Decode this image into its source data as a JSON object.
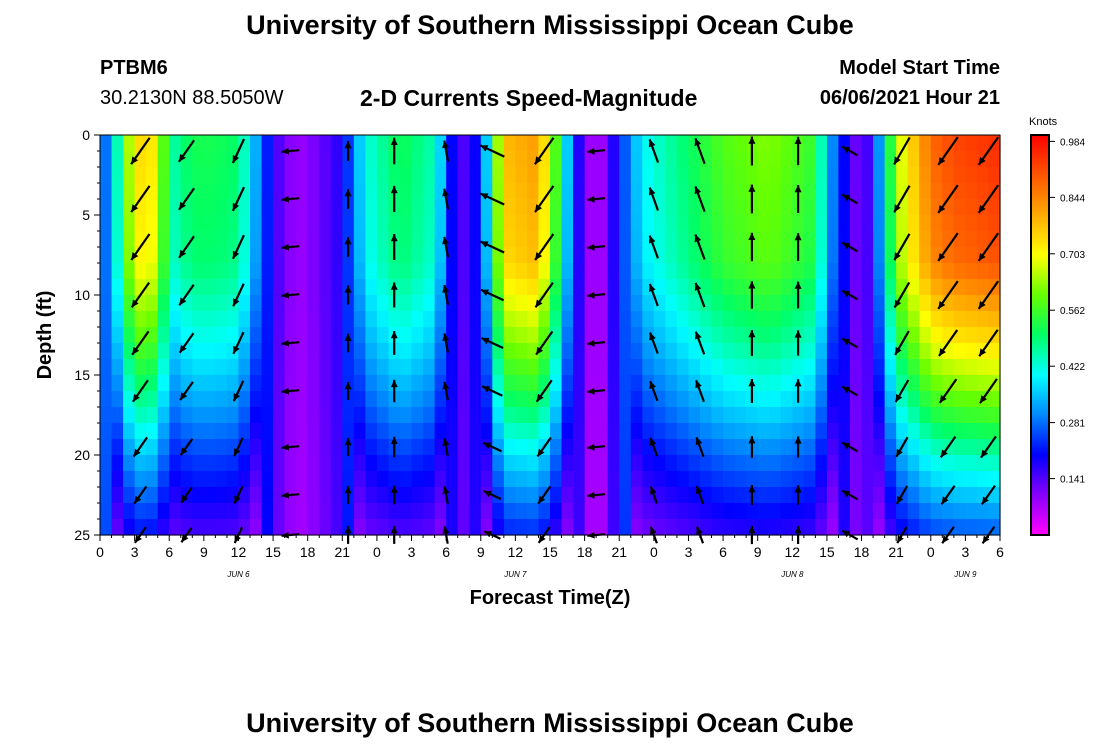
{
  "header": {
    "title": "University of Southern Mississippi Ocean Cube",
    "station_id": "PTBM6",
    "station_coords": "30.2130N  88.5050W",
    "model_start_label": "Model Start Time",
    "model_start_time": "06/06/2021 Hour 21"
  },
  "footer": {
    "title": "University of Southern Mississippi Ocean Cube"
  },
  "chart_data": {
    "type": "heatmap",
    "title": "2-D Currents Speed-Magnitude",
    "xlabel": "Forecast Time(Z)",
    "ylabel": "Depth (ft)",
    "x_range_hours": [
      0,
      78
    ],
    "y_range_ft": [
      0,
      25
    ],
    "y_inverted": true,
    "y_ticks": [
      0,
      5,
      10,
      15,
      20,
      25
    ],
    "x_tick_labels": [
      "0",
      "3",
      "6",
      "9",
      "12",
      "15",
      "18",
      "21",
      "0",
      "3",
      "6",
      "9",
      "12",
      "15",
      "18",
      "21",
      "0",
      "3",
      "6",
      "9",
      "12",
      "15",
      "18",
      "21",
      "0",
      "3",
      "6"
    ],
    "date_labels": [
      {
        "text": "JUN 6",
        "hour": 12
      },
      {
        "text": "JUN 7",
        "hour": 36
      },
      {
        "text": "JUN 8",
        "hour": 60
      },
      {
        "text": "JUN 9",
        "hour": 75
      }
    ],
    "colorbar": {
      "unit": "Knots",
      "ticks": [
        0.141,
        0.281,
        0.422,
        0.562,
        0.703,
        0.844,
        0.984
      ],
      "min": 0.0,
      "max": 1.0,
      "colors": [
        "#ff00ff",
        "#8800ff",
        "#0000ff",
        "#0088ff",
        "#00ffff",
        "#00ff66",
        "#66ff00",
        "#ffff00",
        "#ffaa00",
        "#ff5500",
        "#ff0000"
      ]
    },
    "speed_profile_knots": [
      {
        "hour": 0,
        "v": 0.22
      },
      {
        "hour": 1,
        "v": 0.35
      },
      {
        "hour": 3,
        "v": 0.75
      },
      {
        "hour": 5,
        "v": 0.72
      },
      {
        "hour": 6,
        "v": 0.45
      },
      {
        "hour": 8,
        "v": 0.52
      },
      {
        "hour": 10,
        "v": 0.52
      },
      {
        "hour": 12,
        "v": 0.5
      },
      {
        "hour": 14,
        "v": 0.28
      },
      {
        "hour": 15,
        "v": 0.16
      },
      {
        "hour": 17,
        "v": 0.08
      },
      {
        "hour": 19,
        "v": 0.12
      },
      {
        "hour": 21,
        "v": 0.18
      },
      {
        "hour": 23,
        "v": 0.42
      },
      {
        "hour": 26,
        "v": 0.52
      },
      {
        "hour": 29,
        "v": 0.45
      },
      {
        "hour": 31,
        "v": 0.12
      },
      {
        "hour": 33,
        "v": 0.22
      },
      {
        "hour": 35,
        "v": 0.78
      },
      {
        "hour": 38,
        "v": 0.82
      },
      {
        "hour": 40,
        "v": 0.5
      },
      {
        "hour": 41,
        "v": 0.22
      },
      {
        "hour": 43,
        "v": 0.04
      },
      {
        "hour": 45,
        "v": 0.22
      },
      {
        "hour": 47,
        "v": 0.4
      },
      {
        "hour": 50,
        "v": 0.48
      },
      {
        "hour": 54,
        "v": 0.58
      },
      {
        "hour": 58,
        "v": 0.62
      },
      {
        "hour": 62,
        "v": 0.55
      },
      {
        "hour": 63,
        "v": 0.35
      },
      {
        "hour": 65,
        "v": 0.15
      },
      {
        "hour": 66,
        "v": 0.1
      },
      {
        "hour": 67,
        "v": 0.2
      },
      {
        "hour": 69,
        "v": 0.65
      },
      {
        "hour": 72,
        "v": 0.88
      },
      {
        "hour": 74,
        "v": 0.92
      },
      {
        "hour": 78,
        "v": 0.95
      }
    ],
    "depth_attenuation": [
      {
        "depth": 0,
        "f": 1.0
      },
      {
        "depth": 8,
        "f": 0.95
      },
      {
        "depth": 13,
        "f": 0.78
      },
      {
        "depth": 17,
        "f": 0.62
      },
      {
        "depth": 20,
        "f": 0.48
      },
      {
        "depth": 23,
        "f": 0.36
      },
      {
        "depth": 25,
        "f": 0.28
      }
    ],
    "vector_times": [
      3.5,
      7.5,
      12,
      16.5,
      21.5,
      25.5,
      30,
      34,
      38.5,
      43,
      48,
      52,
      56.5,
      60.5,
      65,
      69.5,
      73.5,
      77
    ],
    "vector_depths": [
      1,
      4,
      7,
      10,
      13,
      16,
      19.5,
      22.5,
      25
    ],
    "vector_direction_deg": [
      {
        "hour": 3.5,
        "dir": 215
      },
      {
        "hour": 7.5,
        "dir": 215
      },
      {
        "hour": 12,
        "dir": 205
      },
      {
        "hour": 16.5,
        "dir": 265
      },
      {
        "hour": 21.5,
        "dir": 360
      },
      {
        "hour": 25.5,
        "dir": 360
      },
      {
        "hour": 30,
        "dir": 350
      },
      {
        "hour": 34,
        "dir": 295
      },
      {
        "hour": 38.5,
        "dir": 215
      },
      {
        "hour": 43,
        "dir": 265
      },
      {
        "hour": 48,
        "dir": 340
      },
      {
        "hour": 52,
        "dir": 340
      },
      {
        "hour": 56.5,
        "dir": 360
      },
      {
        "hour": 60.5,
        "dir": 360
      },
      {
        "hour": 65,
        "dir": 300
      },
      {
        "hour": 69.5,
        "dir": 210
      },
      {
        "hour": 73.5,
        "dir": 215
      },
      {
        "hour": 77,
        "dir": 215
      }
    ]
  }
}
